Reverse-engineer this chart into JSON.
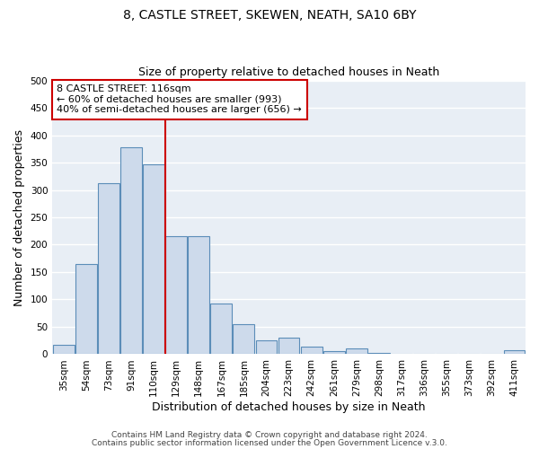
{
  "title": "8, CASTLE STREET, SKEWEN, NEATH, SA10 6BY",
  "subtitle": "Size of property relative to detached houses in Neath",
  "xlabel": "Distribution of detached houses by size in Neath",
  "ylabel": "Number of detached properties",
  "categories": [
    "35sqm",
    "54sqm",
    "73sqm",
    "91sqm",
    "110sqm",
    "129sqm",
    "148sqm",
    "167sqm",
    "185sqm",
    "204sqm",
    "223sqm",
    "242sqm",
    "261sqm",
    "279sqm",
    "298sqm",
    "317sqm",
    "336sqm",
    "355sqm",
    "373sqm",
    "392sqm",
    "411sqm"
  ],
  "values": [
    17,
    165,
    313,
    378,
    346,
    215,
    215,
    93,
    55,
    25,
    30,
    14,
    6,
    10,
    2,
    0,
    0,
    0,
    1,
    0,
    7
  ],
  "bar_color": "#cddaeb",
  "bar_edge_color": "#5b8db8",
  "vline_color": "#cc0000",
  "vline_position": 4.5,
  "annotation_text": "8 CASTLE STREET: 116sqm\n← 60% of detached houses are smaller (993)\n40% of semi-detached houses are larger (656) →",
  "annotation_box_color": "white",
  "annotation_box_edge": "#cc0000",
  "ylim": [
    0,
    500
  ],
  "yticks": [
    0,
    50,
    100,
    150,
    200,
    250,
    300,
    350,
    400,
    450,
    500
  ],
  "footer1": "Contains HM Land Registry data © Crown copyright and database right 2024.",
  "footer2": "Contains public sector information licensed under the Open Government Licence v.3.0.",
  "plot_bg_color": "#e8eef5",
  "title_fontsize": 10,
  "subtitle_fontsize": 9,
  "axis_label_fontsize": 9,
  "tick_fontsize": 7.5,
  "annotation_fontsize": 8,
  "footer_fontsize": 6.5
}
